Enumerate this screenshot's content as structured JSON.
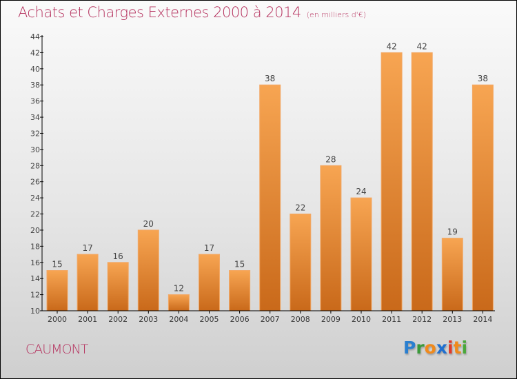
{
  "header": {
    "title": "Achats et Charges Externes 2000 à 2014",
    "subtitle": "(en milliers d'€)"
  },
  "footer": {
    "commune": "CAUMONT",
    "logo_letters": [
      {
        "char": "P",
        "color": "#2a7fd0"
      },
      {
        "char": "r",
        "color": "#3a9a3a"
      },
      {
        "char": "o",
        "color": "#f08a1c"
      },
      {
        "char": "x",
        "color": "#1f6fd0"
      },
      {
        "char": "i",
        "color": "#e03a2a"
      },
      {
        "char": "t",
        "color": "#f08a1c"
      },
      {
        "char": "i",
        "color": "#4aa83a"
      }
    ]
  },
  "colors": {
    "title": "#b5305d",
    "bar_top": "#f7a552",
    "bar_bottom": "#c9691a",
    "axis": "#000000"
  },
  "chart_data": {
    "type": "bar",
    "title": "Achats et Charges Externes 2000 à 2014",
    "subtitle": "(en milliers d'€)",
    "xlabel": "",
    "ylabel": "",
    "categories": [
      "2000",
      "2001",
      "2002",
      "2003",
      "2004",
      "2005",
      "2006",
      "2007",
      "2008",
      "2009",
      "2010",
      "2011",
      "2012",
      "2013",
      "2014"
    ],
    "values": [
      15,
      17,
      16,
      20,
      12,
      17,
      15,
      38,
      22,
      28,
      24,
      42,
      42,
      19,
      38
    ],
    "ylim": [
      10,
      44
    ],
    "yticks": [
      10,
      12,
      14,
      16,
      18,
      20,
      22,
      24,
      26,
      28,
      30,
      32,
      34,
      36,
      38,
      40,
      42,
      44
    ],
    "grid": false,
    "legend": "none",
    "data_labels": true
  }
}
